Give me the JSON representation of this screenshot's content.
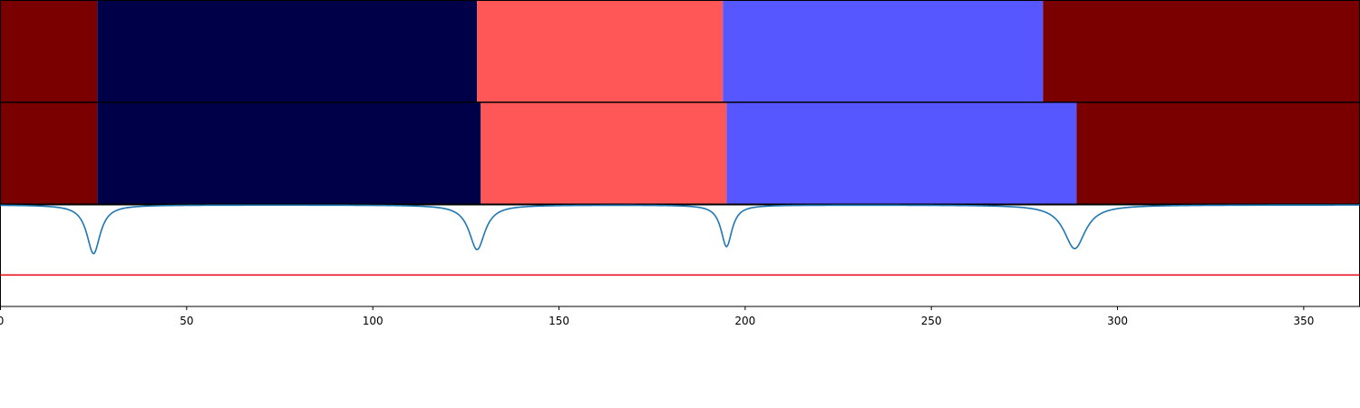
{
  "chart_data": {
    "type": "segmentation",
    "xlim": [
      0,
      365
    ],
    "x_ticks": [
      0,
      50,
      100,
      150,
      200,
      250,
      300,
      350
    ],
    "x_tick_labels": [
      "0",
      "50",
      "100",
      "150",
      "200",
      "250",
      "300",
      "350"
    ],
    "grid": false,
    "legend": "none",
    "colors": {
      "dark_red": "#7a0000",
      "navy": "#000048",
      "light_red": "#ff5757",
      "blue": "#5757ff",
      "curve": "#1f77b4",
      "threshold": "#e8131e"
    },
    "panels": [
      {
        "segments": [
          {
            "start": 0,
            "end": 26,
            "color": "#7a0000"
          },
          {
            "start": 26,
            "end": 128,
            "color": "#000048"
          },
          {
            "start": 128,
            "end": 194,
            "color": "#ff5757"
          },
          {
            "start": 194,
            "end": 280,
            "color": "#5757ff"
          },
          {
            "start": 280,
            "end": 365,
            "color": "#7a0000"
          }
        ]
      },
      {
        "segments": [
          {
            "start": 0,
            "end": 26,
            "color": "#7a0000"
          },
          {
            "start": 26,
            "end": 129,
            "color": "#000048"
          },
          {
            "start": 129,
            "end": 195,
            "color": "#ff5757"
          },
          {
            "start": 195,
            "end": 289,
            "color": "#5757ff"
          },
          {
            "start": 289,
            "end": 365,
            "color": "#7a0000"
          }
        ]
      }
    ],
    "curve_panel": {
      "ylim": [
        0,
        1
      ],
      "threshold": 0.31,
      "curve": {
        "baseline": 1.0,
        "dips": [
          {
            "center": 25,
            "depth": 0.48,
            "width": 2.2
          },
          {
            "center": 128,
            "depth": 0.44,
            "width": 2.6
          },
          {
            "center": 195,
            "depth": 0.41,
            "width": 1.8
          },
          {
            "center": 288.5,
            "depth": 0.43,
            "width": 3.5
          }
        ]
      }
    }
  }
}
